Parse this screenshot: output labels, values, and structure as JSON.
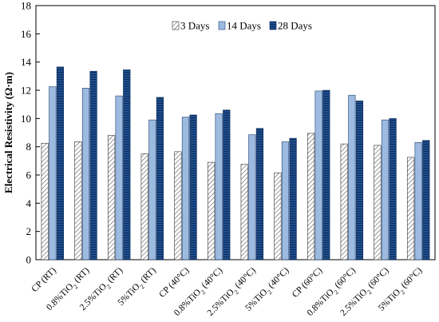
{
  "chart_data": {
    "type": "bar",
    "ylabel": "Electrical Resistivity (Ω·m)",
    "xlabel": "",
    "ylim": [
      0,
      18
    ],
    "yticks": [
      0,
      2,
      4,
      6,
      8,
      10,
      12,
      14,
      16,
      18
    ],
    "grid": false,
    "legend_position": "top",
    "categories": [
      {
        "main": "CP (RT)"
      },
      {
        "main": "0.8%TiO",
        "sub": "2",
        "tail": " (RT)"
      },
      {
        "main": "2.5%TiO",
        "sub": "2",
        "tail": " (RT)"
      },
      {
        "main": "5%TiO",
        "sub": "2",
        "tail": " (RT)"
      },
      {
        "main": "CP (40°C)"
      },
      {
        "main": "0.8%TiO",
        "sub": "2",
        "tail": " (40°C)"
      },
      {
        "main": "2.5%TiO",
        "sub": "2",
        "tail": " (40°C)"
      },
      {
        "main": "5%TiO",
        "sub": "2",
        "tail": " (40°C)"
      },
      {
        "main": "CP (60°C)"
      },
      {
        "main": "0.8%TiO",
        "sub": "2",
        "tail": " (60°C)"
      },
      {
        "main": "2.5%TiO",
        "sub": "2",
        "tail": " (60°C)"
      },
      {
        "main": "5%TiO",
        "sub": "2",
        "tail": " (60°C)"
      }
    ],
    "series": [
      {
        "name": "3 Days",
        "values": [
          8.25,
          8.35,
          8.8,
          7.5,
          7.65,
          6.9,
          6.75,
          6.15,
          8.95,
          8.2,
          8.1,
          7.25
        ]
      },
      {
        "name": "14 Days",
        "values": [
          12.25,
          12.15,
          11.6,
          9.9,
          10.1,
          10.35,
          8.85,
          8.35,
          11.95,
          11.65,
          9.9,
          8.3
        ]
      },
      {
        "name": "28 Days",
        "values": [
          13.65,
          13.35,
          13.45,
          11.5,
          10.25,
          10.6,
          9.3,
          8.6,
          12.0,
          11.25,
          10.0,
          8.45
        ]
      }
    ],
    "series_colors": [
      "#ffffff",
      "#9dbbe0",
      "#1f4e8c"
    ]
  }
}
